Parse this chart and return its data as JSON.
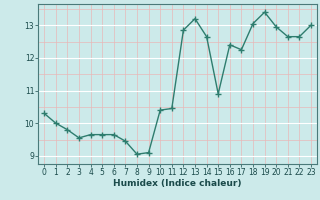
{
  "title": "",
  "xlabel": "Humidex (Indice chaleur)",
  "ylabel": "",
  "x": [
    0,
    1,
    2,
    3,
    4,
    5,
    6,
    7,
    8,
    9,
    10,
    11,
    12,
    13,
    14,
    15,
    16,
    17,
    18,
    19,
    20,
    21,
    22,
    23
  ],
  "y": [
    10.3,
    10.0,
    9.8,
    9.55,
    9.65,
    9.65,
    9.65,
    9.45,
    9.05,
    9.1,
    10.4,
    10.45,
    12.85,
    13.2,
    12.65,
    10.9,
    12.4,
    12.25,
    13.05,
    13.4,
    12.95,
    12.65,
    12.65,
    13.0
  ],
  "line_color": "#2e7d6e",
  "marker": "+",
  "marker_size": 4.0,
  "bg_color": "#cceaea",
  "ylim": [
    8.75,
    13.65
  ],
  "xlim": [
    -0.5,
    23.5
  ],
  "yticks": [
    9,
    10,
    11,
    12,
    13
  ],
  "xticks": [
    0,
    1,
    2,
    3,
    4,
    5,
    6,
    7,
    8,
    9,
    10,
    11,
    12,
    13,
    14,
    15,
    16,
    17,
    18,
    19,
    20,
    21,
    22,
    23
  ],
  "tick_fontsize": 5.5,
  "label_fontsize": 6.5,
  "line_width": 1.0,
  "major_y_grid_color": "#ffffff",
  "minor_y_grid_color": "#e8b8b8",
  "x_grid_color": "#e8b8b8"
}
